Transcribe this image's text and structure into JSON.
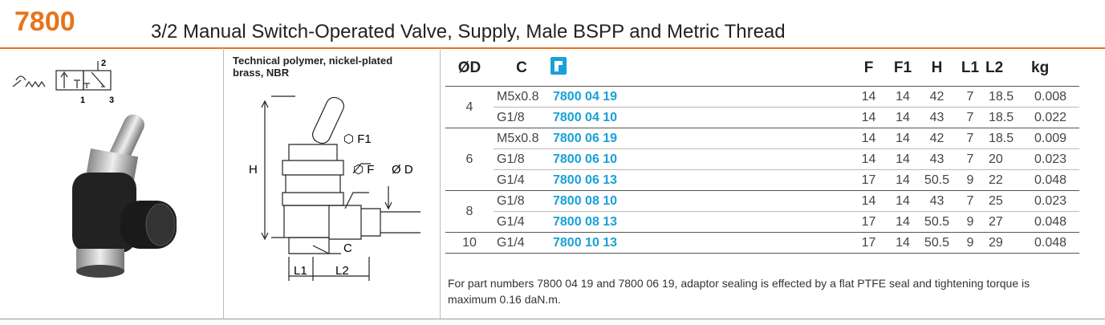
{
  "header": {
    "code": "7800",
    "title": "3/2 Manual Switch-Operated Valve, Supply, Male BSPP and Metric Thread"
  },
  "symbol": {
    "ports": [
      "2",
      "1",
      "3"
    ]
  },
  "material": "Technical polymer, nickel-plated brass, NBR",
  "drawing": {
    "labels": [
      "F1",
      "F",
      "Ø D",
      "H",
      "C",
      "L1",
      "L2"
    ]
  },
  "table": {
    "columns": [
      "ØD",
      "C",
      "F",
      "F1",
      "H",
      "L1",
      "L2",
      "kg"
    ],
    "groups": [
      {
        "od": "4",
        "rows": [
          [
            "M5x0.8",
            "7800 04 19",
            "14",
            "14",
            "42",
            "7",
            "18.5",
            "0.008"
          ],
          [
            "G1/8",
            "7800 04 10",
            "14",
            "14",
            "43",
            "7",
            "18.5",
            "0.022"
          ]
        ]
      },
      {
        "od": "6",
        "rows": [
          [
            "M5x0.8",
            "7800 06 19",
            "14",
            "14",
            "42",
            "7",
            "18.5",
            "0.009"
          ],
          [
            "G1/8",
            "7800 06 10",
            "14",
            "14",
            "43",
            "7",
            "20",
            "0.023"
          ],
          [
            "G1/4",
            "7800 06 13",
            "17",
            "14",
            "50.5",
            "9",
            "22",
            "0.048"
          ]
        ]
      },
      {
        "od": "8",
        "rows": [
          [
            "G1/8",
            "7800 08 10",
            "14",
            "14",
            "43",
            "7",
            "25",
            "0.023"
          ],
          [
            "G1/4",
            "7800 08 13",
            "17",
            "14",
            "50.5",
            "9",
            "27",
            "0.048"
          ]
        ]
      },
      {
        "od": "10",
        "rows": [
          [
            "G1/4",
            "7800 10 13",
            "17",
            "14",
            "50.5",
            "9",
            "29",
            "0.048"
          ]
        ]
      }
    ]
  },
  "note": "For part numbers 7800 04 19 and 7800 06 19, adaptor sealing is effected by a flat PTFE seal and tightening torque is maximum 0.16 daN.m."
}
